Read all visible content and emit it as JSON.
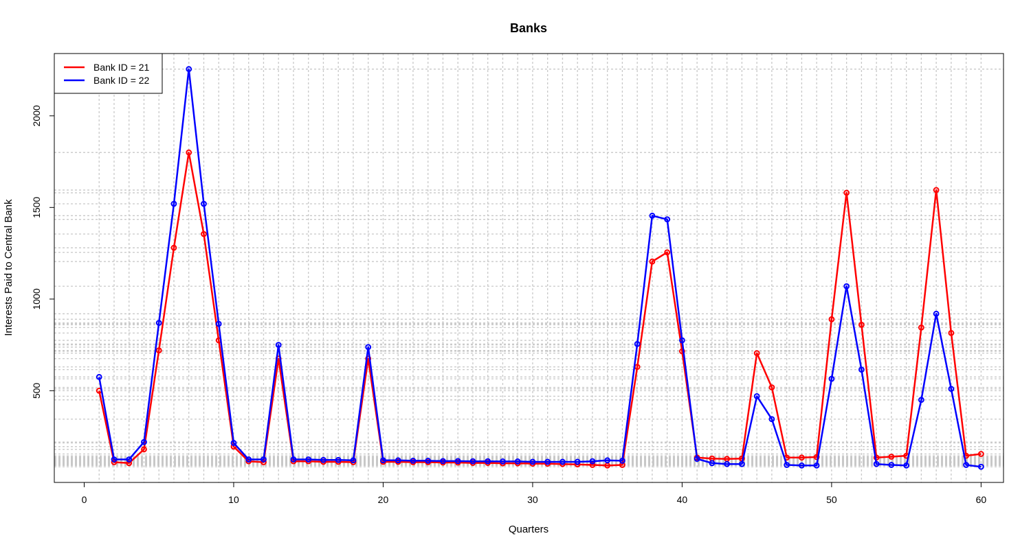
{
  "chart_data": {
    "type": "line",
    "title": "Banks",
    "xlabel": "Quarters",
    "ylabel": "Interests Paid to Central Bank",
    "xlim": [
      -2,
      61.5
    ],
    "ylim": [
      -0.5,
      2340
    ],
    "xticks": [
      0,
      10,
      20,
      30,
      40,
      50,
      60
    ],
    "yticks": [
      500,
      1000,
      1500,
      2000
    ],
    "grid": true,
    "legend_position": "top-left",
    "x": [
      1,
      2,
      3,
      4,
      5,
      6,
      7,
      8,
      9,
      10,
      11,
      12,
      13,
      14,
      15,
      16,
      17,
      18,
      19,
      20,
      21,
      22,
      23,
      24,
      25,
      26,
      27,
      28,
      29,
      30,
      31,
      32,
      33,
      34,
      35,
      36,
      37,
      38,
      39,
      40,
      41,
      42,
      43,
      44,
      45,
      46,
      47,
      48,
      49,
      50,
      51,
      52,
      53,
      54,
      55,
      56,
      57,
      58,
      59,
      60
    ],
    "series": [
      {
        "name": "Bank ID = 21",
        "color": "#ff0000",
        "values": [
          500,
          110,
          105,
          180,
          720,
          1280,
          1800,
          1355,
          775,
          195,
          115,
          110,
          675,
          115,
          115,
          112,
          112,
          110,
          675,
          112,
          112,
          110,
          110,
          108,
          108,
          106,
          106,
          104,
          104,
          102,
          102,
          100,
          98,
          95,
          92,
          95,
          630,
          1205,
          1255,
          715,
          135,
          130,
          128,
          130,
          705,
          518,
          135,
          135,
          138,
          890,
          1580,
          860,
          135,
          140,
          145,
          845,
          1595,
          815,
          145,
          155
        ]
      },
      {
        "name": "Bank ID = 22",
        "color": "#0000ff",
        "values": [
          575,
          125,
          125,
          220,
          870,
          1520,
          2255,
          1520,
          865,
          215,
          125,
          125,
          750,
          125,
          125,
          122,
          122,
          120,
          738,
          120,
          120,
          118,
          118,
          116,
          116,
          115,
          115,
          114,
          114,
          112,
          112,
          112,
          112,
          115,
          120,
          118,
          755,
          1455,
          1435,
          775,
          128,
          105,
          100,
          100,
          470,
          345,
          95,
          92,
          92,
          565,
          1070,
          615,
          100,
          95,
          92,
          450,
          920,
          510,
          95,
          85
        ]
      }
    ]
  }
}
